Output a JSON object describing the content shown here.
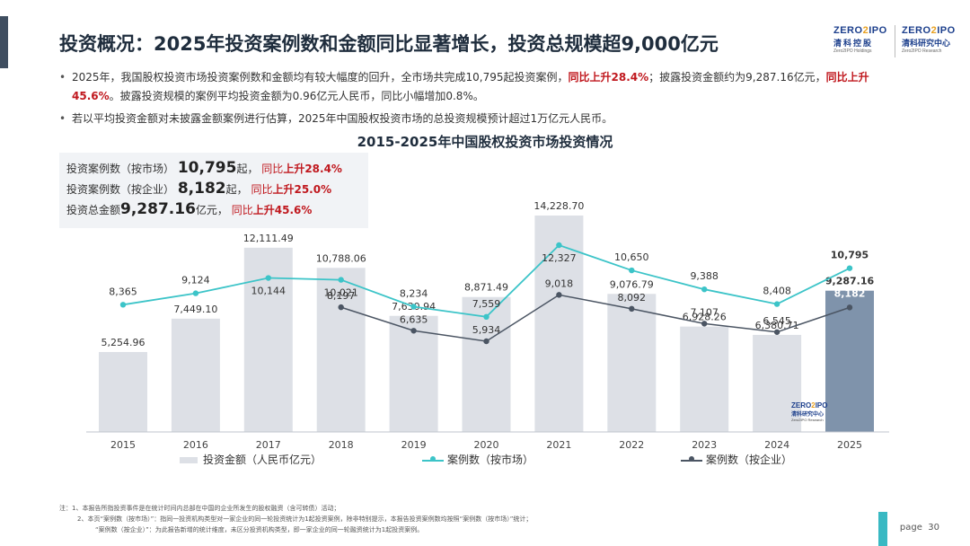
{
  "header": {
    "title": "投资概况：2025年投资案例数和金额同比显著增长，投资总规模超9,000亿元",
    "logo1": {
      "brand": "ZERO2IPO",
      "cn": "清科控股",
      "en": "Zero2IPO Holdings"
    },
    "logo2": {
      "brand": "ZERO2IPO",
      "cn": "清科研究中心",
      "en": "Zero2IPO Research"
    }
  },
  "bullets": {
    "b1_p1": "2025年，我国股权投资市场投资案例数和金额均有较大幅度的回升，全市场共完成10,795起投资案例，",
    "b1_red1": "同比上升28.4%",
    "b1_p2": "；披露投资金额约为9,287.16亿元，",
    "b1_red2": "同比上升45.6%",
    "b1_p3": "。披露投资规模的案例平均投资金额为0.96亿元人民币，同比小幅增加0.8%。",
    "b2": "若以平均投资金额对未披露金额案例进行估算，2025年中国股权投资市场的总投资规模预计超过1万亿元人民币。"
  },
  "stats": {
    "r1_label": "投资案例数（按市场）",
    "r1_value": "10,795",
    "r1_unit": "起，",
    "r1_yoy": "同比",
    "r1_chg": "上升28.4%",
    "r2_label": "投资案例数（按企业）",
    "r2_value": "8,182",
    "r2_unit": "起，",
    "r2_yoy": "同比",
    "r2_chg": "上升25.0%",
    "r3_label": "投资总金额",
    "r3_value": "9,287.16",
    "r3_unit": "亿元，",
    "r3_yoy": "同比",
    "r3_chg": "上升45.6%"
  },
  "chart_data": {
    "type": "bar",
    "title": "2015-2025年中国股权投资市场投资情况",
    "categories": [
      "2015",
      "2016",
      "2017",
      "2018",
      "2019",
      "2020",
      "2021",
      "2022",
      "2023",
      "2024",
      "2025"
    ],
    "series": [
      {
        "name": "投资金额（人民币亿元）",
        "type": "bar",
        "values": [
          5254.96,
          7449.1,
          12111.49,
          10788.06,
          7630.94,
          8871.49,
          14228.7,
          9076.79,
          6928.26,
          6380.71,
          9287.16
        ],
        "labels": [
          "5,254.96",
          "7,449.10",
          "12,111.49",
          "10,788.06",
          "7,630.94",
          "8,871.49",
          "14,228.70",
          "9,076.79",
          "6,928.26",
          "6,380.71",
          "9,287.16"
        ]
      },
      {
        "name": "案例数（按市场）",
        "type": "line",
        "values": [
          8365,
          9124,
          10144,
          10021,
          8234,
          7559,
          12327,
          10650,
          9388,
          8408,
          10795
        ],
        "labels": [
          "8,365",
          "9,124",
          "10,144",
          "10,021",
          "8,234",
          "7,559",
          "12,327",
          "10,650",
          "9,388",
          "8,408",
          "10,795"
        ]
      },
      {
        "name": "案例数（按企业）",
        "type": "line",
        "values": [
          null,
          null,
          null,
          8197,
          6635,
          5934,
          9018,
          8092,
          7107,
          6545,
          8182
        ],
        "labels": [
          "",
          "",
          "",
          "8,197",
          "6,635",
          "5,934",
          "9,018",
          "8,092",
          "7,107",
          "6,545",
          "8,182"
        ]
      }
    ],
    "colors": {
      "bar": "#dde0e6",
      "bar_highlight": "#7f93ab",
      "line1": "#3cc4c8",
      "line2": "#4b5563"
    }
  },
  "legend": {
    "bar": "投资金额（人民币亿元）",
    "line1": "案例数（按市场）",
    "line2": "案例数（按企业）"
  },
  "watermark": {
    "brand": "ZERO2IPO",
    "cn": "清科研究中心",
    "en": "Zero2IPO Research"
  },
  "notes": {
    "n1": "注：1、本报告所指投资事件是在统计时间内总部在中国的企业所发生的股权融资（含可转债）活动；",
    "n2": "2、本页“案例数（按市场）”：指同一投资机构类型对一家企业的同一轮投资统计为1起投资案例，除非特别提示，本报告投资案例数均按照“案例数（按市场）”统计；",
    "n3": "“案例数（按企业）”：为此报告新增的统计维度，未区分投资机构类型，即一家企业的同一轮融资统计为1起投资案例。"
  },
  "page": {
    "label": "page",
    "number": "30"
  }
}
